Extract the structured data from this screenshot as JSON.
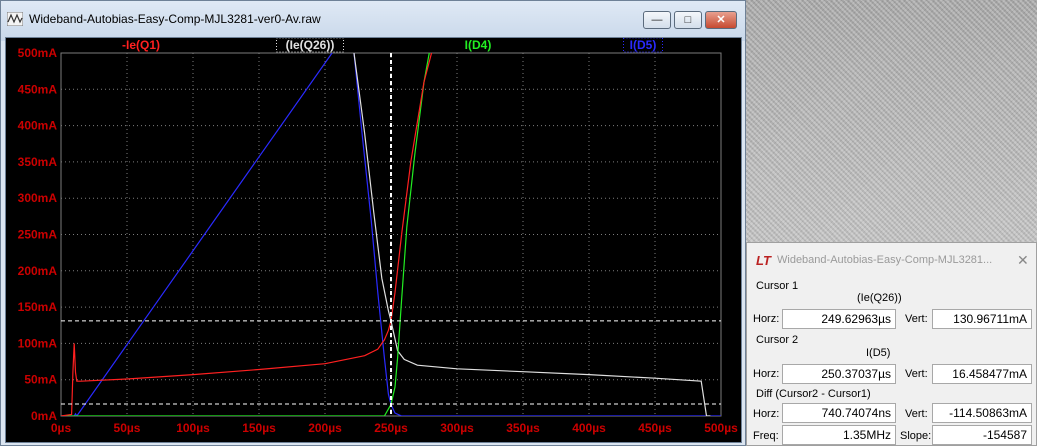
{
  "main_window": {
    "title": "Wideband-Autobias-Easy-Comp-MJL3281-ver0-Av.raw",
    "minimize_glyph": "—",
    "maximize_glyph": "□",
    "close_glyph": "✕"
  },
  "colors": {
    "plot_bg": "#000000",
    "grid": "#7d7d7d",
    "axis_text": "#cc0000",
    "ie_q1": "#ff2020",
    "ie_q26": "#e0e0e0",
    "i_d4": "#22ee22",
    "i_d5": "#2a2aff"
  },
  "chart_data": {
    "type": "line",
    "title": "",
    "xlabel": "",
    "ylabel": "",
    "xlim": [
      0,
      500
    ],
    "ylim": [
      0,
      500
    ],
    "x_ticks": [
      "0µs",
      "50µs",
      "100µs",
      "150µs",
      "200µs",
      "250µs",
      "300µs",
      "350µs",
      "400µs",
      "450µs",
      "500µs"
    ],
    "y_ticks": [
      "0mA",
      "50mA",
      "100mA",
      "150mA",
      "200mA",
      "250mA",
      "300mA",
      "350mA",
      "400mA",
      "450mA",
      "500mA"
    ],
    "grid": true,
    "legend": [
      "-Ie(Q1)",
      "(Ie(Q26))",
      "I(D4)",
      "I(D5)"
    ],
    "series": [
      {
        "name": "-Ie(Q1)",
        "x": [
          0,
          8,
          9,
          10,
          11,
          12,
          15,
          50,
          100,
          150,
          200,
          230,
          240,
          245,
          248,
          250,
          253,
          258,
          265,
          275,
          285
        ],
        "y": [
          0,
          2,
          60,
          100,
          60,
          48,
          48,
          51,
          57,
          64,
          72,
          83,
          92,
          105,
          118,
          131,
          170,
          250,
          350,
          460,
          530
        ]
      },
      {
        "name": "(Ie(Q26))",
        "x": [
          217,
          222,
          230,
          237,
          243,
          248,
          250,
          255,
          260,
          270,
          300,
          350,
          400,
          450,
          485,
          489,
          492
        ],
        "y": [
          530,
          500,
          390,
          280,
          190,
          145,
          131,
          90,
          78,
          70,
          65,
          61,
          57,
          52,
          48,
          0,
          0
        ]
      },
      {
        "name": "I(D4)",
        "x": [
          0,
          245,
          250,
          253,
          255,
          258,
          262,
          268,
          275,
          282
        ],
        "y": [
          0,
          0,
          16,
          40,
          80,
          160,
          260,
          360,
          460,
          530
        ]
      },
      {
        "name": "I(D5)",
        "x": [
          0,
          10,
          11,
          12,
          217,
          222,
          228,
          235,
          240,
          245,
          248,
          250,
          253,
          258,
          500
        ],
        "y": [
          0,
          0,
          3,
          0,
          530,
          500,
          390,
          270,
          170,
          80,
          30,
          16,
          4,
          0,
          0
        ]
      }
    ],
    "cursors": {
      "vertical_x": [
        249.62963,
        250.37037
      ],
      "horizontal_y": [
        130.96711,
        16.458477
      ]
    }
  },
  "cursor_dialog": {
    "icon": "LT",
    "title": "Wideband-Autobias-Easy-Comp-MJL3281...",
    "close_glyph": "✕",
    "cursor1_label": "Cursor 1",
    "cursor1_trace": "(Ie(Q26))",
    "cursor1_horz_label": "Horz:",
    "cursor1_horz": "249.62963µs",
    "cursor1_vert_label": "Vert:",
    "cursor1_vert": "130.96711mA",
    "cursor2_label": "Cursor 2",
    "cursor2_trace": "I(D5)",
    "cursor2_horz_label": "Horz:",
    "cursor2_horz": "250.37037µs",
    "cursor2_vert_label": "Vert:",
    "cursor2_vert": "16.458477mA",
    "diff_label": "Diff (Cursor2 - Cursor1)",
    "diff_horz_label": "Horz:",
    "diff_horz": "740.74074ns",
    "diff_vert_label": "Vert:",
    "diff_vert": "-114.50863mA",
    "freq_label": "Freq:",
    "freq": "1.35MHz",
    "slope_label": "Slope:",
    "slope": "-154587"
  }
}
